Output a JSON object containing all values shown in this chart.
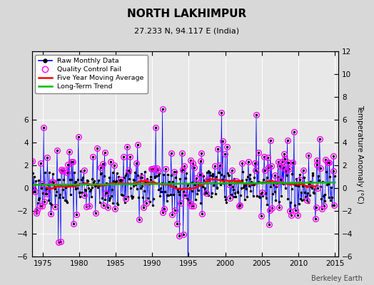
{
  "title": "NORTH LAKHIMPUR",
  "subtitle": "27.233 N, 94.117 E (India)",
  "credit": "Berkeley Earth",
  "xlim": [
    1973.5,
    2015.5
  ],
  "ylim": [
    -6.5,
    7.5
  ],
  "plot_ylim": [
    -6,
    7
  ],
  "yticks_left": [
    -6,
    -4,
    -2,
    0,
    2,
    4,
    6
  ],
  "yticks_right": [
    -6,
    -4,
    -2,
    0,
    2,
    4,
    6,
    8,
    10,
    12
  ],
  "right_ylim": [
    -6.5,
    13.5
  ],
  "ylabel_right": "Temperature Anomaly (°C)",
  "xticks": [
    1975,
    1980,
    1985,
    1990,
    1995,
    2000,
    2005,
    2010,
    2015
  ],
  "bg_color": "#d8d8d8",
  "plot_bg_color": "#e8e8e8",
  "grid_color": "#ffffff",
  "raw_color": "#0000ff",
  "raw_marker_color": "#000000",
  "qc_color": "#ff00ff",
  "ma_color": "#ff0000",
  "trend_color": "#00bb00",
  "seed": 42,
  "n_points": 504,
  "start_year": 1973.042,
  "end_year": 2015.0
}
